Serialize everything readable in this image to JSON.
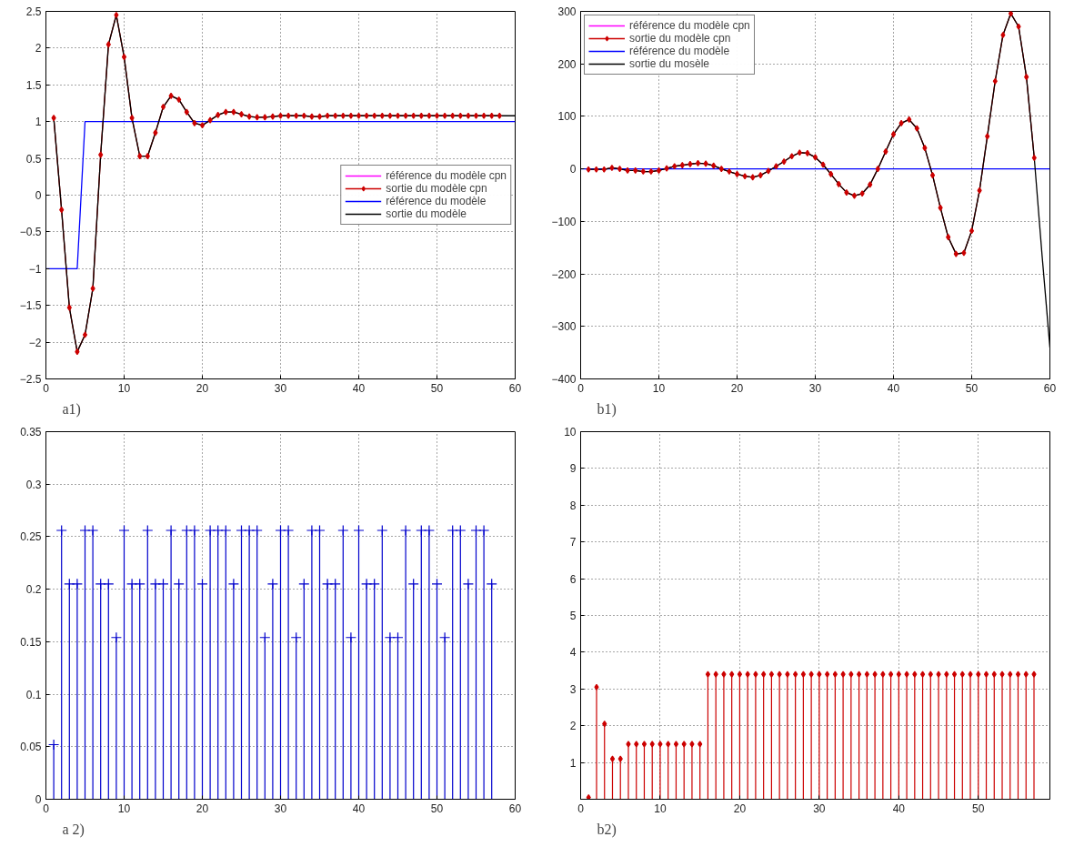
{
  "chart_data": [
    {
      "type": "line",
      "xlim": [
        0,
        60
      ],
      "xticks": [
        0,
        10,
        20,
        30,
        40,
        50,
        60
      ],
      "ylim": [
        -2.5,
        2.5
      ],
      "yticks": [
        -2.5,
        -2,
        -1.5,
        -1,
        -0.5,
        0,
        0.5,
        1,
        1.5,
        2,
        2.5
      ],
      "grid": true,
      "legend": "right",
      "annotations": [
        "a1)"
      ],
      "series": [
        {
          "name": "référence du modèle cpn",
          "color": "#ff00ff"
        },
        {
          "name": "sortie du modèle cpn",
          "color": "#cc0000",
          "marker": "diamond",
          "x": [
            1,
            2,
            3,
            4,
            5,
            6,
            7,
            8,
            9,
            10,
            11,
            12,
            13,
            14,
            15,
            16,
            17,
            18,
            19,
            20,
            21,
            22,
            23,
            24,
            25,
            26,
            27,
            28,
            29,
            30,
            31,
            32,
            33,
            34,
            35,
            36,
            37,
            38,
            39,
            40,
            41,
            42,
            43,
            44,
            45,
            46,
            47,
            48,
            49,
            50,
            51,
            52,
            53,
            54,
            55,
            56,
            57,
            58
          ],
          "values": [
            1.05,
            -0.2,
            -1.53,
            -2.13,
            -1.9,
            -1.27,
            0.55,
            2.05,
            2.45,
            1.88,
            1.05,
            0.53,
            0.53,
            0.85,
            1.2,
            1.35,
            1.3,
            1.13,
            0.98,
            0.95,
            1.02,
            1.09,
            1.13,
            1.13,
            1.1,
            1.07,
            1.06,
            1.06,
            1.07,
            1.08,
            1.08,
            1.08,
            1.08,
            1.07,
            1.07,
            1.08,
            1.08,
            1.08,
            1.08,
            1.08,
            1.08,
            1.08,
            1.08,
            1.08,
            1.08,
            1.08,
            1.08,
            1.08,
            1.08,
            1.08,
            1.08,
            1.08,
            1.08,
            1.08,
            1.08,
            1.08,
            1.08,
            1.08
          ]
        },
        {
          "name": "référence du modèle",
          "color": "#0000ff",
          "x": [
            0,
            4,
            5,
            60
          ],
          "values": [
            -1,
            -1,
            1,
            1
          ]
        },
        {
          "name": "sortie du modèle",
          "color": "#000000",
          "x": [
            1,
            2,
            3,
            4,
            5,
            6,
            7,
            8,
            9,
            10,
            11,
            12,
            13,
            14,
            15,
            16,
            17,
            18,
            19,
            20,
            21,
            22,
            23,
            24,
            25,
            26,
            27,
            28,
            29,
            30,
            31,
            32,
            33,
            34,
            35,
            36,
            37,
            38,
            39,
            40,
            41,
            42,
            43,
            44,
            45,
            46,
            47,
            48,
            49,
            50,
            51,
            52,
            53,
            54,
            55,
            56,
            57,
            58,
            59,
            60
          ],
          "values": [
            1.05,
            -0.2,
            -1.53,
            -2.13,
            -1.9,
            -1.27,
            0.55,
            2.05,
            2.45,
            1.88,
            1.05,
            0.53,
            0.53,
            0.85,
            1.2,
            1.35,
            1.3,
            1.13,
            0.98,
            0.95,
            1.02,
            1.09,
            1.13,
            1.13,
            1.1,
            1.07,
            1.06,
            1.06,
            1.07,
            1.08,
            1.08,
            1.08,
            1.08,
            1.07,
            1.07,
            1.08,
            1.08,
            1.08,
            1.08,
            1.08,
            1.08,
            1.08,
            1.08,
            1.08,
            1.08,
            1.08,
            1.08,
            1.08,
            1.08,
            1.08,
            1.08,
            1.08,
            1.08,
            1.08,
            1.08,
            1.08,
            1.08,
            1.08,
            1.08,
            1.08
          ]
        }
      ]
    },
    {
      "type": "line",
      "xlim": [
        0,
        60
      ],
      "xticks": [
        0,
        10,
        20,
        30,
        40,
        50,
        60
      ],
      "ylim": [
        -400,
        300
      ],
      "yticks": [
        -400,
        -300,
        -200,
        -100,
        0,
        100,
        200,
        300
      ],
      "grid": true,
      "legend": "top left",
      "annotations": [
        "b1)"
      ],
      "series": [
        {
          "name": "référence du modèle cpn",
          "color": "#ff00ff"
        },
        {
          "name": "sortie du modèle cpn",
          "color": "#cc0000",
          "marker": "diamond",
          "x": [
            1,
            2,
            3,
            4,
            5,
            6,
            7,
            8,
            9,
            10,
            11,
            12,
            13,
            14,
            15,
            16,
            17,
            18,
            19,
            20,
            21,
            22,
            23,
            24,
            25,
            26,
            27,
            28,
            29,
            30,
            31,
            32,
            33,
            34,
            35,
            36,
            37,
            38,
            39,
            40,
            41,
            42,
            43,
            44,
            45,
            46,
            47,
            48,
            49,
            50,
            51,
            52,
            53,
            54,
            55,
            56,
            57,
            58
          ],
          "values": [
            -1,
            -1,
            -1,
            2,
            0,
            -3,
            -3,
            -5,
            -5,
            -3,
            1,
            5,
            7,
            9,
            11,
            10,
            6,
            0,
            -5,
            -10,
            -14,
            -16,
            -12,
            -4,
            5,
            14,
            24,
            31,
            30,
            22,
            8,
            -10,
            -29,
            -45,
            -51,
            -47,
            -30,
            0,
            33,
            66,
            87,
            94,
            77,
            40,
            -12,
            -74,
            -130,
            -162,
            -160,
            -118,
            -41,
            62,
            167,
            255,
            296,
            271,
            175,
            21
          ]
        },
        {
          "name": "référence du modèle",
          "color": "#0000ff",
          "x": [
            0,
            60
          ],
          "values": [
            0,
            0
          ]
        },
        {
          "name": "sortie du mosèle",
          "color": "#000000",
          "x": [
            1,
            2,
            3,
            4,
            5,
            6,
            7,
            8,
            9,
            10,
            11,
            12,
            13,
            14,
            15,
            16,
            17,
            18,
            19,
            20,
            21,
            22,
            23,
            24,
            25,
            26,
            27,
            28,
            29,
            30,
            31,
            32,
            33,
            34,
            35,
            36,
            37,
            38,
            39,
            40,
            41,
            42,
            43,
            44,
            45,
            46,
            47,
            48,
            49,
            50,
            51,
            52,
            53,
            54,
            55,
            56,
            57,
            58,
            59,
            60
          ],
          "values": [
            -1,
            -1,
            -1,
            2,
            0,
            -3,
            -3,
            -5,
            -5,
            -3,
            1,
            5,
            7,
            9,
            11,
            10,
            6,
            0,
            -5,
            -10,
            -14,
            -16,
            -12,
            -4,
            5,
            14,
            24,
            31,
            30,
            22,
            8,
            -10,
            -29,
            -45,
            -51,
            -47,
            -30,
            0,
            33,
            66,
            87,
            94,
            77,
            40,
            -12,
            -74,
            -130,
            -162,
            -160,
            -118,
            -41,
            62,
            167,
            255,
            296,
            271,
            175,
            21,
            -165,
            -340
          ]
        }
      ]
    },
    {
      "type": "lollipop",
      "xlim": [
        0,
        60
      ],
      "xticks": [
        0,
        10,
        20,
        30,
        40,
        50,
        60
      ],
      "ylim": [
        0,
        0.35
      ],
      "yticks": [
        0,
        0.05,
        0.1,
        0.15,
        0.2,
        0.25,
        0.3,
        0.35
      ],
      "grid": true,
      "marker": "cross",
      "annotations": [
        "a 2)"
      ],
      "x": [
        1,
        2,
        3,
        4,
        5,
        6,
        7,
        8,
        9,
        10,
        11,
        12,
        13,
        14,
        15,
        16,
        17,
        18,
        19,
        20,
        21,
        22,
        23,
        24,
        25,
        26,
        27,
        28,
        29,
        30,
        31,
        32,
        33,
        34,
        35,
        36,
        37,
        38,
        39,
        40,
        41,
        42,
        43,
        44,
        45,
        46,
        47,
        48,
        49,
        50,
        51,
        52,
        53,
        54,
        55,
        56,
        57
      ],
      "series": [
        {
          "color": "#0000cc",
          "values": [
            0.052,
            0.256,
            0.205,
            0.205,
            0.256,
            0.256,
            0.205,
            0.205,
            0.154,
            0.256,
            0.205,
            0.205,
            0.256,
            0.205,
            0.205,
            0.256,
            0.205,
            0.256,
            0.256,
            0.205,
            0.256,
            0.256,
            0.256,
            0.205,
            0.256,
            0.256,
            0.256,
            0.154,
            0.205,
            0.256,
            0.256,
            0.154,
            0.205,
            0.256,
            0.256,
            0.205,
            0.205,
            0.256,
            0.154,
            0.256,
            0.205,
            0.205,
            0.256,
            0.154,
            0.154,
            0.256,
            0.205,
            0.256,
            0.256,
            0.205,
            0.154,
            0.256,
            0.256,
            0.205,
            0.256,
            0.256,
            0.205
          ]
        }
      ]
    },
    {
      "type": "lollipop",
      "xlim": [
        0,
        59
      ],
      "xticks": [
        0,
        10,
        20,
        30,
        40,
        50
      ],
      "ylim": [
        0,
        10
      ],
      "yticks": [
        1,
        2,
        3,
        4,
        5,
        6,
        7,
        8,
        9,
        10
      ],
      "grid": true,
      "marker": "diamond",
      "annotations": [
        "b2)"
      ],
      "x": [
        1,
        2,
        3,
        4,
        5,
        6,
        7,
        8,
        9,
        10,
        11,
        12,
        13,
        14,
        15,
        16,
        17,
        18,
        19,
        20,
        21,
        22,
        23,
        24,
        25,
        26,
        27,
        28,
        29,
        30,
        31,
        32,
        33,
        34,
        35,
        36,
        37,
        38,
        39,
        40,
        41,
        42,
        43,
        44,
        45,
        46,
        47,
        48,
        49,
        50,
        51,
        52,
        53,
        54,
        55,
        56,
        57
      ],
      "series": [
        {
          "color": "#cc0000",
          "values": [
            0.05,
            3.05,
            2.05,
            1.1,
            1.1,
            1.5,
            1.5,
            1.5,
            1.5,
            1.5,
            1.5,
            1.5,
            1.5,
            1.5,
            1.5,
            3.4,
            3.4,
            3.4,
            3.4,
            3.4,
            3.4,
            3.4,
            3.4,
            3.4,
            3.4,
            3.4,
            3.4,
            3.4,
            3.4,
            3.4,
            3.4,
            3.4,
            3.4,
            3.4,
            3.4,
            3.4,
            3.4,
            3.4,
            3.4,
            3.4,
            3.4,
            3.4,
            3.4,
            3.4,
            3.4,
            3.4,
            3.4,
            3.4,
            3.4,
            3.4,
            3.4,
            3.4,
            3.4,
            3.4,
            3.4,
            3.4,
            3.4
          ]
        }
      ]
    }
  ]
}
